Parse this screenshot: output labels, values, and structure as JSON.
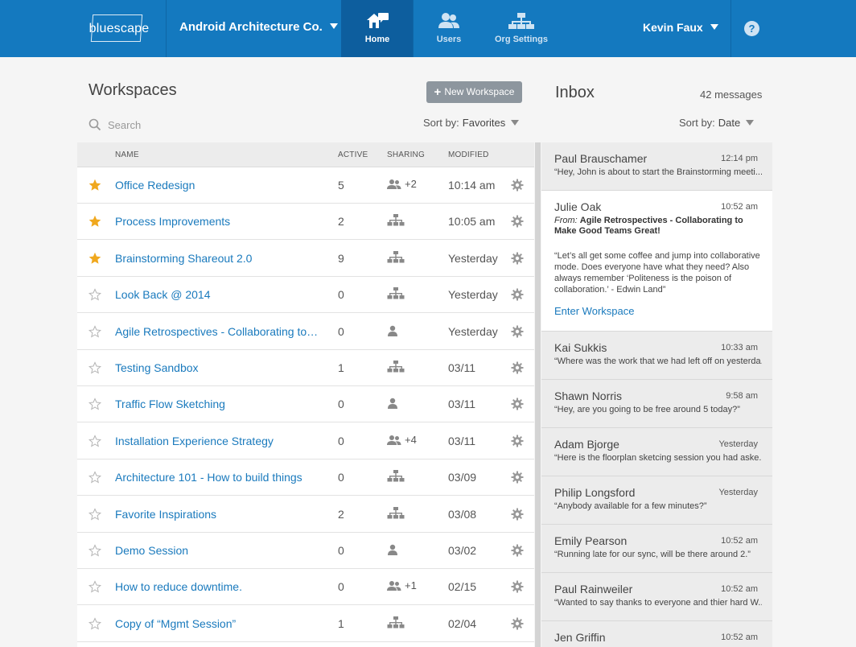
{
  "topbar": {
    "logo_text": "bluescape",
    "org_name": "Android Architecture Co.",
    "nav": [
      {
        "label": "Home",
        "icon": "home-icon",
        "active": true
      },
      {
        "label": "Users",
        "icon": "users-icon",
        "active": false
      },
      {
        "label": "Org Settings",
        "icon": "org-chart-icon",
        "active": false
      }
    ],
    "user_name": "Kevin Faux",
    "help_label": "?"
  },
  "workspaces": {
    "title": "Workspaces",
    "new_button_label": "New Workspace",
    "search_placeholder": "Search",
    "sort_label": "Sort by:",
    "sort_value": "Favorites",
    "columns": {
      "name": "NAME",
      "active": "ACTIVE",
      "sharing": "SHARING",
      "modified": "MODIFIED"
    },
    "rows": [
      {
        "name": "Office Redesign",
        "favorite": true,
        "active": "5",
        "sharing": "people",
        "sharing_count": "+2",
        "modified": "10:14 am"
      },
      {
        "name": "Process Improvements",
        "favorite": true,
        "active": "2",
        "sharing": "org",
        "sharing_count": "",
        "modified": "10:05 am"
      },
      {
        "name": "Brainstorming Shareout 2.0",
        "favorite": true,
        "active": "9",
        "sharing": "org",
        "sharing_count": "",
        "modified": "Yesterday"
      },
      {
        "name": "Look Back @ 2014",
        "favorite": false,
        "active": "0",
        "sharing": "org",
        "sharing_count": "",
        "modified": "Yesterday"
      },
      {
        "name": "Agile Retrospectives - Collaborating to M...",
        "favorite": false,
        "active": "0",
        "sharing": "person",
        "sharing_count": "",
        "modified": "Yesterday"
      },
      {
        "name": "Testing Sandbox",
        "favorite": false,
        "active": "1",
        "sharing": "org",
        "sharing_count": "",
        "modified": "03/11"
      },
      {
        "name": "Traffic Flow Sketching",
        "favorite": false,
        "active": "0",
        "sharing": "person",
        "sharing_count": "",
        "modified": "03/11"
      },
      {
        "name": "Installation Experience Strategy",
        "favorite": false,
        "active": "0",
        "sharing": "people",
        "sharing_count": "+4",
        "modified": "03/11"
      },
      {
        "name": "Architecture 101 -  How to build things",
        "favorite": false,
        "active": "0",
        "sharing": "org",
        "sharing_count": "",
        "modified": "03/09"
      },
      {
        "name": "Favorite Inspirations",
        "favorite": false,
        "active": "2",
        "sharing": "org",
        "sharing_count": "",
        "modified": "03/08"
      },
      {
        "name": "Demo Session",
        "favorite": false,
        "active": "0",
        "sharing": "person",
        "sharing_count": "",
        "modified": "03/02"
      },
      {
        "name": "How to reduce downtime.",
        "favorite": false,
        "active": "0",
        "sharing": "people",
        "sharing_count": "+1",
        "modified": "02/15"
      },
      {
        "name": "Copy of “Mgmt Session”",
        "favorite": false,
        "active": "1",
        "sharing": "org",
        "sharing_count": "",
        "modified": "02/04"
      }
    ]
  },
  "inbox": {
    "title": "Inbox",
    "count": "42 messages",
    "sort_label": "Sort by:",
    "sort_value": "Date",
    "messages": [
      {
        "sender": "Paul Brauschamer",
        "time": "12:14 pm",
        "preview": "“Hey, John is about to start the Brainstorming meeti...”"
      },
      {
        "sender": "Julie Oak",
        "time": "10:52 am",
        "open": true,
        "from_label": "From:",
        "from_title": "Agile Retrospectives - Collaborating to Make Good Teams Great!",
        "body": "“Let’s all get some coffee and jump into collaborative mode. Does everyone have what they need? Also always remember ‘Politeness is the poison of collaboration.’ - Edwin Land”",
        "action": "Enter Workspace"
      },
      {
        "sender": "Kai Sukkis",
        "time": "10:33 am",
        "preview": "“Where was the work that we had left off on yesterda...”"
      },
      {
        "sender": "Shawn Norris",
        "time": "9:58 am",
        "preview": "“Hey, are you going to be free around 5 today?”"
      },
      {
        "sender": "Adam Bjorge",
        "time": "Yesterday",
        "preview": "“Here is the floorplan sketcing session you had aske...”"
      },
      {
        "sender": "Philip Longsford",
        "time": "Yesterday",
        "preview": "“Anybody available for a few minutes?”"
      },
      {
        "sender": "Emily Pearson",
        "time": "10:52 am",
        "preview": "“Running late for our sync, will be there around 2.”"
      },
      {
        "sender": "Paul Rainweiler",
        "time": "10:52 am",
        "preview": "“Wanted to say thanks to everyone and thier hard W...”"
      },
      {
        "sender": "Jen Griffin",
        "time": "10:52 am",
        "preview": ""
      }
    ]
  },
  "colors": {
    "brand": "#1479bf",
    "link": "#1a7abd",
    "star": "#f0a81e"
  }
}
